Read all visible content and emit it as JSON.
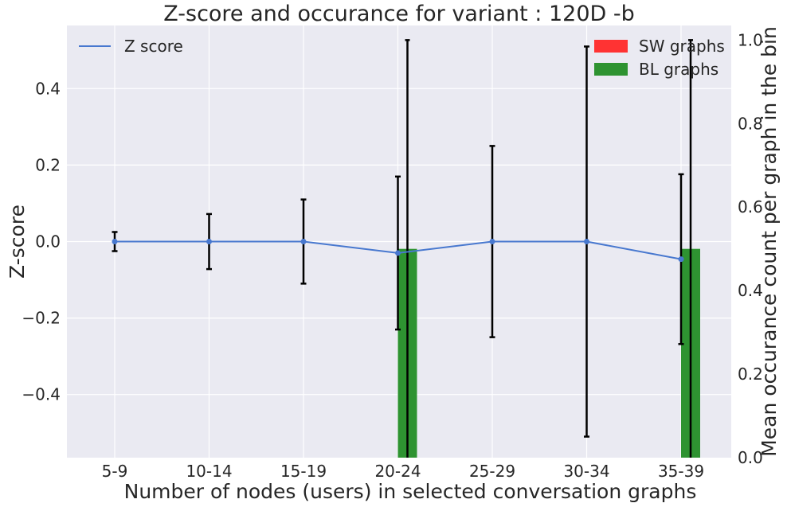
{
  "chart_data": {
    "type": "bar+line",
    "title": "Z-score and occurance for variant : 120D -b",
    "xlabel": "Number of nodes (users) in selected conversation graphs",
    "ylabel_left": "Z-score",
    "ylabel_right": "Mean occurance count per graph in the bin",
    "categories": [
      "5-9",
      "10-14",
      "15-19",
      "20-24",
      "25-29",
      "30-34",
      "35-39"
    ],
    "ylim_left": [
      -0.565,
      0.565
    ],
    "ylim_right": [
      0.0,
      1.035
    ],
    "yticks_left": [
      -0.4,
      -0.2,
      0.0,
      0.2,
      0.4
    ],
    "yticks_left_labels": [
      "−0.4",
      "−0.2",
      "0.0",
      "0.2",
      "0.4"
    ],
    "yticks_right": [
      0.0,
      0.2,
      0.4,
      0.6,
      0.8,
      1.0
    ],
    "yticks_right_labels": [
      "0.0",
      "0.2",
      "0.4",
      "0.6",
      "0.8",
      "1.0"
    ],
    "grid": true,
    "line_series": {
      "name": "Z score",
      "color": "#4878cf",
      "values": [
        0.0,
        0.0,
        0.0,
        -0.03,
        0.0,
        0.0,
        -0.046
      ],
      "error": [
        0.025,
        0.072,
        0.11,
        0.2,
        0.25,
        0.51,
        0.222
      ]
    },
    "bar_series": [
      {
        "name": "SW graphs",
        "color": "#ff3333",
        "values": [
          0.0,
          0.0,
          0.0,
          0.0,
          0.0,
          0.0,
          0.0
        ],
        "error": [
          0,
          0,
          0,
          0,
          0,
          0,
          0
        ]
      },
      {
        "name": "BL graphs",
        "color": "#2e9331",
        "values": [
          0.0,
          0.0,
          0.0,
          0.5,
          0.0,
          0.0,
          0.5
        ],
        "error": [
          0,
          0,
          0,
          0.5,
          0,
          0,
          0.5
        ]
      }
    ],
    "legend_left": "top-left",
    "legend_right": "top-right"
  }
}
